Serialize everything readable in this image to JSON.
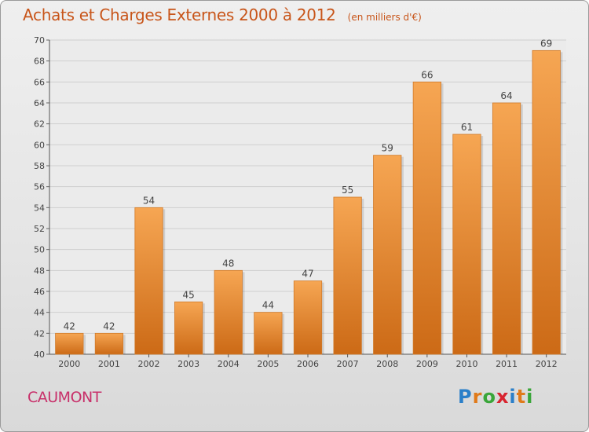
{
  "title": "Achats et Charges Externes 2000 à 2012",
  "subtitle": "(en milliers d'€)",
  "commune": "CAUMONT",
  "brand": {
    "text": "Proxiti",
    "letter_colors": [
      "#2a7fc9",
      "#e07a1a",
      "#3aa63a",
      "#d8242f",
      "#2a7fc9",
      "#e07a1a",
      "#3aa63a"
    ]
  },
  "colors": {
    "bar_top": "#f6a653",
    "bar_bottom": "#cc6a16",
    "title": "#c8551a",
    "commune": "#c8306a"
  },
  "chart_data": {
    "type": "bar",
    "categories": [
      "2000",
      "2001",
      "2002",
      "2003",
      "2004",
      "2005",
      "2006",
      "2007",
      "2008",
      "2009",
      "2010",
      "2011",
      "2012"
    ],
    "values": [
      42,
      42,
      54,
      45,
      48,
      44,
      47,
      55,
      59,
      66,
      61,
      64,
      69
    ],
    "ylim": [
      40,
      70
    ],
    "yticks": [
      40,
      42,
      44,
      46,
      48,
      50,
      52,
      54,
      56,
      58,
      60,
      62,
      64,
      66,
      68,
      70
    ],
    "grid": true,
    "xlabel": "",
    "ylabel": ""
  }
}
